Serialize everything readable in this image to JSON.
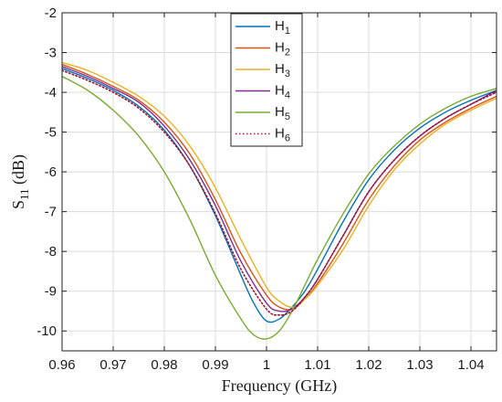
{
  "chart_data": {
    "type": "line",
    "xlabel": "Frequency (GHz)",
    "ylabel_main": "S",
    "ylabel_sub": "11",
    "ylabel_suffix": " (dB)",
    "xlim": [
      0.96,
      1.045
    ],
    "ylim": [
      -10.5,
      -2
    ],
    "x_ticks": [
      0.96,
      0.97,
      0.98,
      0.99,
      1.0,
      1.01,
      1.02,
      1.03,
      1.04
    ],
    "x_tick_labels": [
      "0.96",
      "0.97",
      "0.98",
      "0.99",
      "1",
      "1.01",
      "1.02",
      "1.03",
      "1.04"
    ],
    "y_ticks": [
      -10,
      -9,
      -8,
      -7,
      -6,
      -5,
      -4,
      -3,
      -2
    ],
    "y_tick_labels": [
      "-10",
      "-9",
      "-8",
      "-7",
      "-6",
      "-5",
      "-4",
      "-3",
      "-2"
    ],
    "grid": true,
    "legend_position": "top-center",
    "series": [
      {
        "name_main": "H",
        "name_sub": "1",
        "color": "#0072BD",
        "dash": "solid",
        "x": [
          0.96,
          0.965,
          0.97,
          0.975,
          0.98,
          0.985,
          0.99,
          0.995,
          0.9975,
          1.0,
          1.0025,
          1.005,
          1.0075,
          1.01,
          1.015,
          1.02,
          1.025,
          1.03,
          1.035,
          1.04,
          1.045
        ],
        "y": [
          -3.4,
          -3.65,
          -3.95,
          -4.35,
          -4.95,
          -5.85,
          -7.1,
          -8.6,
          -9.3,
          -9.75,
          -9.7,
          -9.4,
          -9.0,
          -8.45,
          -7.25,
          -6.2,
          -5.45,
          -4.9,
          -4.5,
          -4.2,
          -3.95
        ]
      },
      {
        "name_main": "H",
        "name_sub": "2",
        "color": "#D95319",
        "dash": "solid",
        "x": [
          0.96,
          0.965,
          0.97,
          0.975,
          0.98,
          0.985,
          0.99,
          0.995,
          1.0,
          1.0025,
          1.005,
          1.0075,
          1.01,
          1.015,
          1.02,
          1.025,
          1.03,
          1.035,
          1.04,
          1.045
        ],
        "y": [
          -3.3,
          -3.55,
          -3.85,
          -4.2,
          -4.75,
          -5.55,
          -6.7,
          -8.05,
          -9.1,
          -9.4,
          -9.45,
          -9.2,
          -8.8,
          -7.8,
          -6.7,
          -5.85,
          -5.2,
          -4.75,
          -4.4,
          -4.1
        ]
      },
      {
        "name_main": "H",
        "name_sub": "3",
        "color": "#EDB120",
        "dash": "solid",
        "x": [
          0.96,
          0.965,
          0.97,
          0.975,
          0.98,
          0.985,
          0.99,
          0.995,
          1.0,
          1.0025,
          1.005,
          1.0075,
          1.01,
          1.015,
          1.02,
          1.025,
          1.03,
          1.035,
          1.04,
          1.045
        ],
        "y": [
          -3.25,
          -3.45,
          -3.75,
          -4.1,
          -4.6,
          -5.35,
          -6.4,
          -7.7,
          -8.9,
          -9.25,
          -9.4,
          -9.2,
          -8.85,
          -7.95,
          -6.85,
          -5.95,
          -5.3,
          -4.8,
          -4.45,
          -4.15
        ]
      },
      {
        "name_main": "H",
        "name_sub": "4",
        "color": "#7E2F8E",
        "dash": "solid",
        "x": [
          0.96,
          0.965,
          0.97,
          0.975,
          0.98,
          0.985,
          0.99,
          0.995,
          1.0,
          1.0025,
          1.005,
          1.0075,
          1.01,
          1.015,
          1.02,
          1.025,
          1.03,
          1.035,
          1.04,
          1.045
        ],
        "y": [
          -3.35,
          -3.6,
          -3.9,
          -4.25,
          -4.85,
          -5.7,
          -6.85,
          -8.25,
          -9.3,
          -9.5,
          -9.45,
          -9.15,
          -8.7,
          -7.6,
          -6.5,
          -5.7,
          -5.1,
          -4.65,
          -4.3,
          -3.95
        ]
      },
      {
        "name_main": "H",
        "name_sub": "5",
        "color": "#77AC30",
        "dash": "solid",
        "x": [
          0.96,
          0.965,
          0.97,
          0.975,
          0.98,
          0.985,
          0.99,
          0.995,
          0.9975,
          1.0,
          1.0025,
          1.005,
          1.0075,
          1.01,
          1.015,
          1.02,
          1.025,
          1.03,
          1.035,
          1.04,
          1.045
        ],
        "y": [
          -3.6,
          -3.95,
          -4.45,
          -5.1,
          -6.0,
          -7.2,
          -8.6,
          -9.7,
          -10.1,
          -10.2,
          -10.0,
          -9.5,
          -8.85,
          -8.2,
          -7.05,
          -6.05,
          -5.35,
          -4.8,
          -4.4,
          -4.1,
          -3.9
        ]
      },
      {
        "name_main": "H",
        "name_sub": "6",
        "color": "#A2142F",
        "dash": "dotted",
        "x": [
          0.96,
          0.965,
          0.97,
          0.975,
          0.98,
          0.985,
          0.99,
          0.995,
          1.0,
          1.0025,
          1.005,
          1.0075,
          1.01,
          1.015,
          1.02,
          1.025,
          1.03,
          1.035,
          1.04,
          1.045
        ],
        "y": [
          -3.45,
          -3.7,
          -4.0,
          -4.4,
          -5.0,
          -5.85,
          -7.05,
          -8.45,
          -9.45,
          -9.6,
          -9.5,
          -9.15,
          -8.7,
          -7.6,
          -6.5,
          -5.7,
          -5.1,
          -4.65,
          -4.3,
          -4.0
        ]
      }
    ]
  }
}
